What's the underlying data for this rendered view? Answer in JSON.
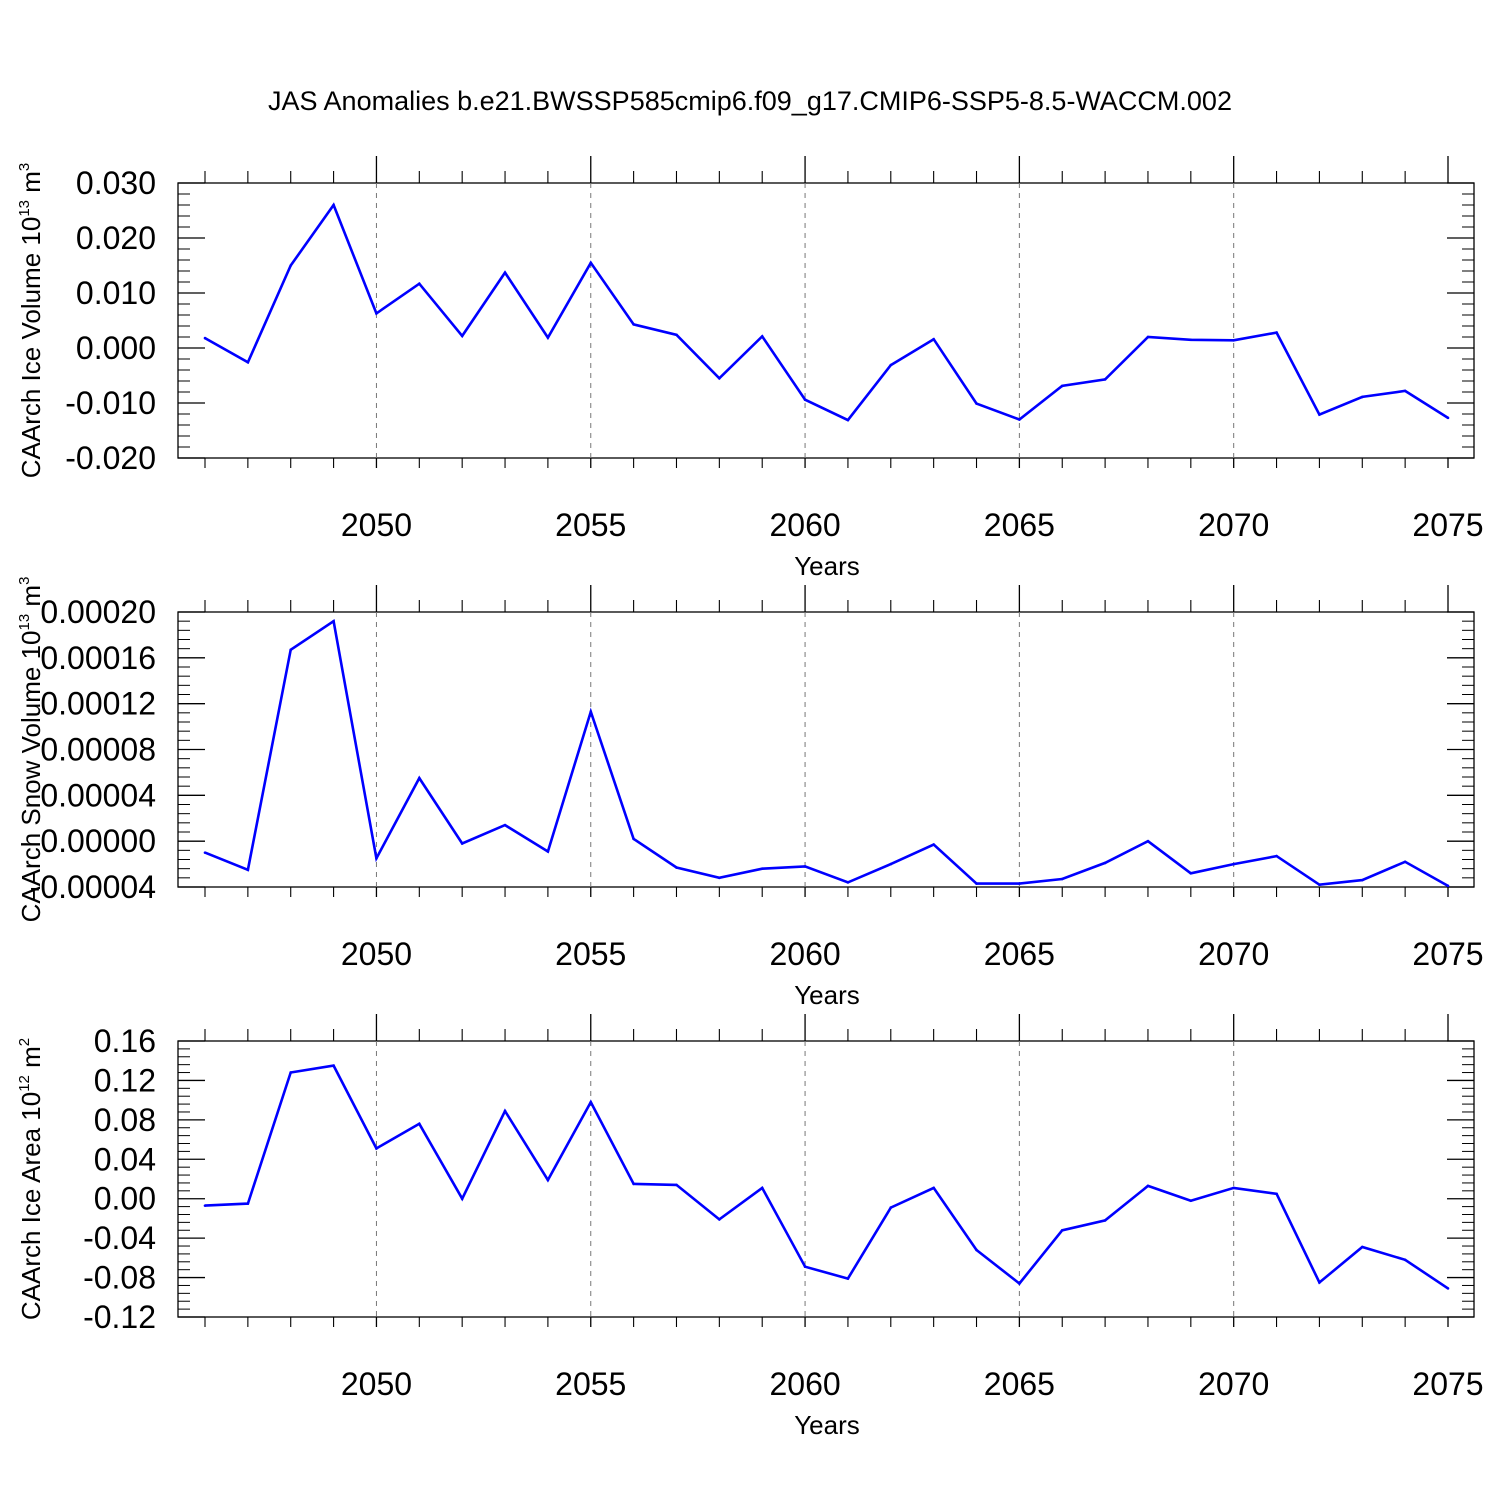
{
  "title": "JAS Anomalies b.e21.BWSSP585cmip6.f09_g17.CMIP6-SSP5-8.5-WACCM.002",
  "colors": {
    "line": "#0000ff",
    "frame": "#000000",
    "gridline": "#777777"
  },
  "chart_data": [
    {
      "type": "line",
      "title": "",
      "xlabel": "Years",
      "ylabel": {
        "main": "CAArch Ice Volume 10",
        "exponent": "13",
        "unit": " m",
        "unit_exponent": "3"
      },
      "xlim": [
        2046,
        2075
      ],
      "ylim": [
        -0.02,
        0.03
      ],
      "x_ticks": [
        "2050",
        "2055",
        "2060",
        "2065",
        "2070",
        "2075"
      ],
      "y_ticks": [
        "-0.020",
        "-0.010",
        "0.000",
        "0.010",
        "0.020",
        "0.030"
      ],
      "grid": "vertical dashed at major x ticks",
      "x": [
        2046,
        2047,
        2048,
        2049,
        2050,
        2051,
        2052,
        2053,
        2054,
        2055,
        2056,
        2057,
        2058,
        2059,
        2060,
        2061,
        2062,
        2063,
        2064,
        2065,
        2066,
        2067,
        2068,
        2069,
        2070,
        2071,
        2072,
        2073,
        2074,
        2075
      ],
      "series": [
        {
          "values": [
            0.0018,
            -0.0026,
            0.015,
            0.026,
            0.0063,
            0.0117,
            0.0022,
            0.0137,
            0.0019,
            0.0155,
            0.0043,
            0.0024,
            -0.0055,
            0.0021,
            -0.0094,
            -0.0131,
            -0.0031,
            0.0016,
            -0.0101,
            -0.013,
            -0.0069,
            -0.0057,
            0.002,
            0.0015,
            0.0014,
            0.0028,
            -0.0121,
            -0.0089,
            -0.0078,
            -0.0127
          ]
        }
      ]
    },
    {
      "type": "line",
      "title": "",
      "xlabel": "Years",
      "ylabel": {
        "main": "CAArch Snow Volume 10",
        "exponent": "13",
        "unit": " m",
        "unit_exponent": "3"
      },
      "xlim": [
        2046,
        2075
      ],
      "ylim": [
        -4e-05,
        0.0002
      ],
      "x_ticks": [
        "2050",
        "2055",
        "2060",
        "2065",
        "2070",
        "2075"
      ],
      "y_ticks": [
        "-0.00004",
        "0.00000",
        "0.00004",
        "0.00008",
        "0.00012",
        "0.00016",
        "0.00020"
      ],
      "grid": "vertical dashed at major x ticks",
      "x": [
        2046,
        2047,
        2048,
        2049,
        2050,
        2051,
        2052,
        2053,
        2054,
        2055,
        2056,
        2057,
        2058,
        2059,
        2060,
        2061,
        2062,
        2063,
        2064,
        2065,
        2066,
        2067,
        2068,
        2069,
        2070,
        2071,
        2072,
        2073,
        2074,
        2075
      ],
      "series": [
        {
          "values": [
            -1e-05,
            -2.5e-05,
            0.000167,
            0.000192,
            -1.5e-05,
            5.5e-05,
            -2e-06,
            1.4e-05,
            -9e-06,
            0.000113,
            2e-06,
            -2.3e-05,
            -3.2e-05,
            -2.4e-05,
            -2.2e-05,
            -3.6e-05,
            -2e-05,
            -3e-06,
            -3.7e-05,
            -3.7e-05,
            -3.3e-05,
            -1.9e-05,
            0.0,
            -2.8e-05,
            -2e-05,
            -1.3e-05,
            -3.8e-05,
            -3.4e-05,
            -1.8e-05,
            -3.9e-05
          ]
        }
      ]
    },
    {
      "type": "line",
      "title": "",
      "xlabel": "Years",
      "ylabel": {
        "main": "CAArch Ice Area 10",
        "exponent": "12",
        "unit": " m",
        "unit_exponent": "2"
      },
      "xlim": [
        2046,
        2075
      ],
      "ylim": [
        -0.12,
        0.16
      ],
      "x_ticks": [
        "2050",
        "2055",
        "2060",
        "2065",
        "2070",
        "2075"
      ],
      "y_ticks": [
        "-0.12",
        "-0.08",
        "-0.04",
        "0.00",
        "0.04",
        "0.08",
        "0.12",
        "0.16"
      ],
      "grid": "vertical dashed at major x ticks",
      "x": [
        2046,
        2047,
        2048,
        2049,
        2050,
        2051,
        2052,
        2053,
        2054,
        2055,
        2056,
        2057,
        2058,
        2059,
        2060,
        2061,
        2062,
        2063,
        2064,
        2065,
        2066,
        2067,
        2068,
        2069,
        2070,
        2071,
        2072,
        2073,
        2074,
        2075
      ],
      "series": [
        {
          "values": [
            -0.007,
            -0.005,
            0.128,
            0.135,
            0.051,
            0.076,
            0.0,
            0.089,
            0.019,
            0.098,
            0.015,
            0.014,
            -0.021,
            0.011,
            -0.069,
            -0.081,
            -0.009,
            0.011,
            -0.052,
            -0.086,
            -0.032,
            -0.022,
            0.013,
            -0.002,
            0.011,
            0.005,
            -0.085,
            -0.049,
            -0.062,
            -0.091
          ]
        }
      ]
    }
  ]
}
